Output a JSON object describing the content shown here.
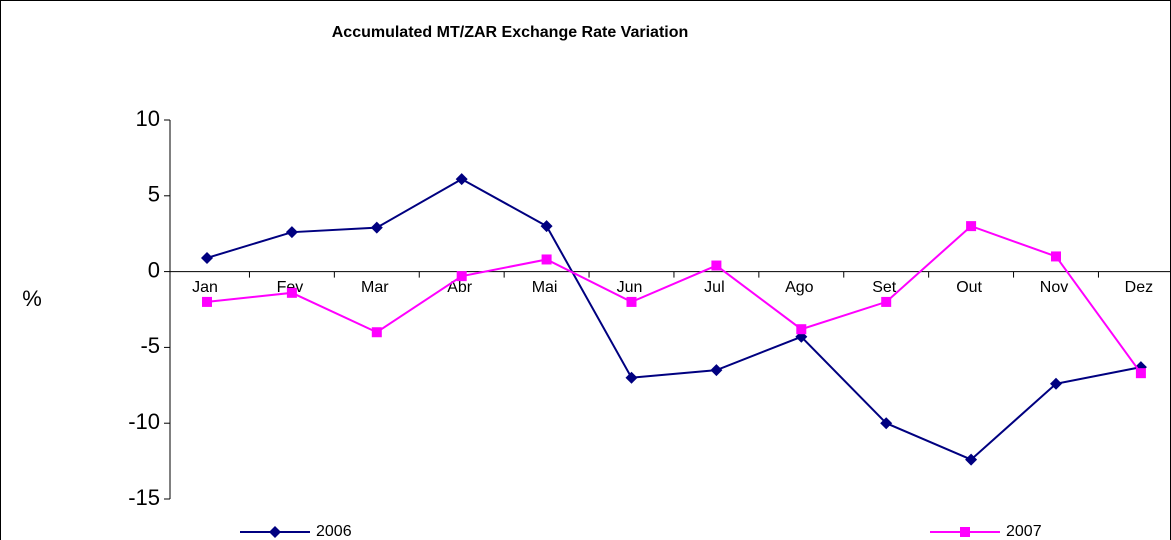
{
  "chart_data": {
    "type": "line",
    "title": "Accumulated MT/ZAR Exchange Rate Variation",
    "y_label": "%",
    "categories": [
      "Jan",
      "Fev",
      "Mar",
      "Abr",
      "Mai",
      "Jun",
      "Jul",
      "Ago",
      "Set",
      "Out",
      "Nov",
      "Dez"
    ],
    "series": [
      {
        "name": "2006",
        "color": "#000080",
        "marker": "diamond",
        "values": [
          0.9,
          2.6,
          2.9,
          6.1,
          3.0,
          -7.0,
          -6.5,
          -4.3,
          -10.0,
          -12.4,
          -7.4,
          -6.3
        ]
      },
      {
        "name": "2007",
        "color": "#ff00ff",
        "marker": "square",
        "values": [
          -2.0,
          -1.4,
          -4.0,
          -0.3,
          0.8,
          -2.0,
          0.4,
          -3.8,
          -2.0,
          3.0,
          1.0,
          -6.7
        ]
      }
    ],
    "ylim": [
      -15,
      10
    ],
    "yticks": [
      -15,
      -10,
      -5,
      0,
      5,
      10
    ],
    "grid": false,
    "legend": "bottom"
  }
}
